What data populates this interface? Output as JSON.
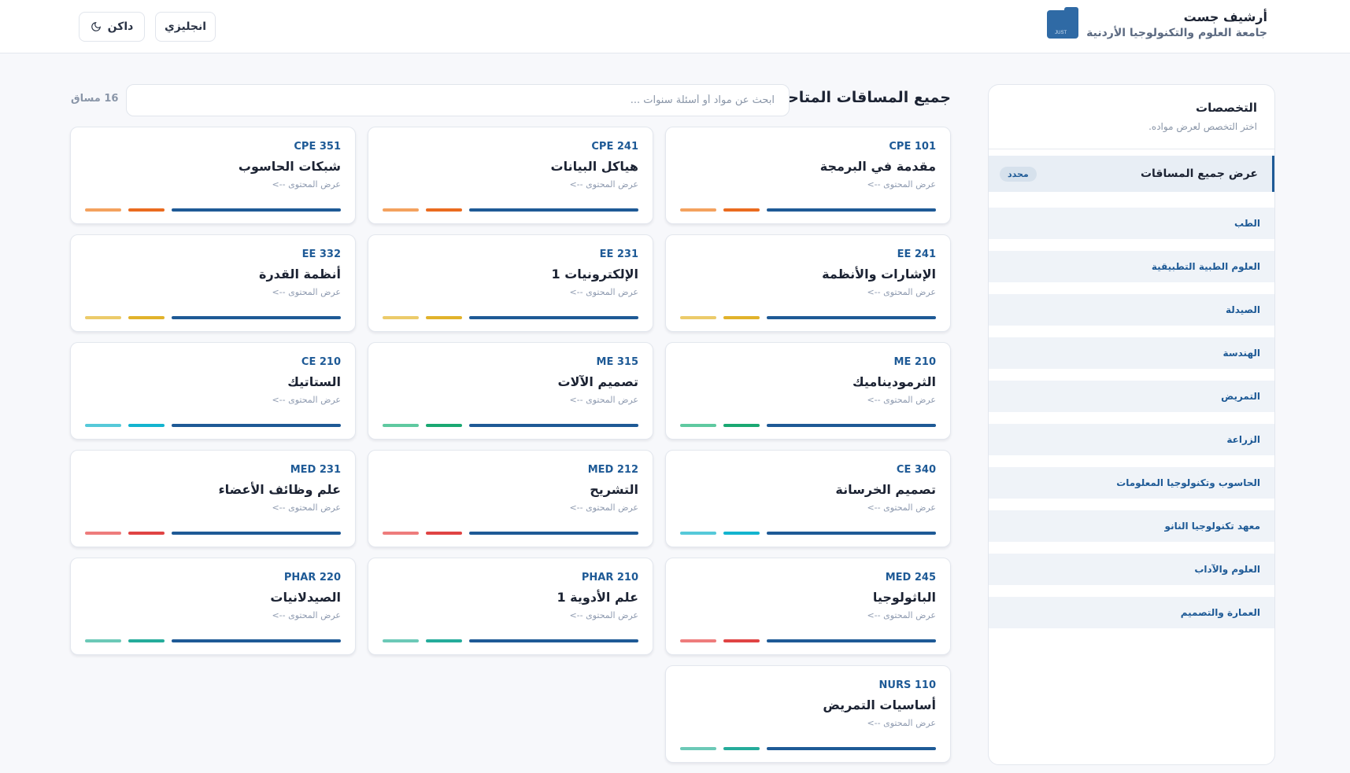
{
  "header": {
    "title": "أرشيف جست",
    "subtitle": "جامعة العلوم والتكنولوجيا الأردنية",
    "logo_text": "JUST",
    "lang_button": "انجليزي",
    "theme_button": "داكن"
  },
  "sidebar": {
    "title": "التخصصات",
    "subtitle": "اختر التخصص لعرض مواده.",
    "active": {
      "label": "عرض جميع المساقات",
      "badge": "محدد"
    },
    "items": [
      {
        "label": "الطب"
      },
      {
        "label": "العلوم الطبية التطبيقية"
      },
      {
        "label": "الصيدلة"
      },
      {
        "label": "الهندسة"
      },
      {
        "label": "التمريض"
      },
      {
        "label": "الزراعة"
      },
      {
        "label": "الحاسوب وتكنولوجيا المعلومات"
      },
      {
        "label": "معهد تكنولوجيا النانو"
      },
      {
        "label": "العلوم والآداب"
      },
      {
        "label": "العمارة والتصميم"
      }
    ]
  },
  "main": {
    "title": "جميع المساقات المتاحة",
    "search_placeholder": "ابحث عن مواد أو أسئلة سنوات ...",
    "count": "16 مساق",
    "link_label": "عرض المحتوى -->",
    "colors": {
      "primary": "#1e5a96",
      "orange": [
        "#f4a25f",
        "#ea6b1f"
      ],
      "yellow": [
        "#eccb6a",
        "#e1b22b"
      ],
      "green": [
        "#5fc9a0",
        "#1aa872"
      ],
      "cyan": [
        "#56c9d9",
        "#13b4cf"
      ],
      "red": [
        "#ee7c7c",
        "#e04444"
      ],
      "teal": [
        "#6cc9b7",
        "#25ac9b"
      ]
    },
    "courses": [
      {
        "code": "CPE 101",
        "name": "مقدمة في البرمجة",
        "color": "orange"
      },
      {
        "code": "CPE 241",
        "name": "هياكل البيانات",
        "color": "orange"
      },
      {
        "code": "CPE 351",
        "name": "شبكات الحاسوب",
        "color": "orange"
      },
      {
        "code": "EE 241",
        "name": "الإشارات والأنظمة",
        "color": "yellow"
      },
      {
        "code": "EE 231",
        "name": "الإلكترونيات 1",
        "color": "yellow"
      },
      {
        "code": "EE 332",
        "name": "أنظمة القدرة",
        "color": "yellow"
      },
      {
        "code": "ME 210",
        "name": "الثرموديناميك",
        "color": "green"
      },
      {
        "code": "ME 315",
        "name": "تصميم الآلات",
        "color": "green"
      },
      {
        "code": "CE 210",
        "name": "الستاتيك",
        "color": "cyan"
      },
      {
        "code": "CE 340",
        "name": "تصميم الخرسانة",
        "color": "cyan"
      },
      {
        "code": "MED 212",
        "name": "التشريح",
        "color": "red"
      },
      {
        "code": "MED 231",
        "name": "علم وظائف الأعضاء",
        "color": "red"
      },
      {
        "code": "MED 245",
        "name": "الباثولوجيا",
        "color": "red"
      },
      {
        "code": "PHAR 210",
        "name": "علم الأدوية 1",
        "color": "teal"
      },
      {
        "code": "PHAR 220",
        "name": "الصيدلانيات",
        "color": "teal"
      },
      {
        "code": "NURS 110",
        "name": "أساسيات التمريض",
        "color": "teal"
      }
    ]
  }
}
